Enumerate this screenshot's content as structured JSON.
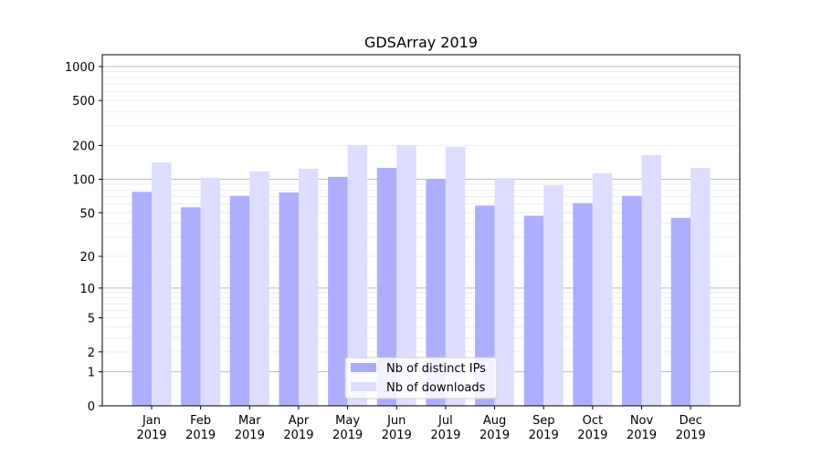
{
  "chart_data": {
    "type": "bar",
    "title": "GDSArray 2019",
    "xlabel": "",
    "ylabel": "",
    "yscale": "log(1+y)",
    "ylim": [
      0,
      1200
    ],
    "yticks": [
      0,
      1,
      2,
      5,
      10,
      20,
      50,
      100,
      200,
      500,
      1000
    ],
    "grid": true,
    "legend_position": "bottom-center",
    "categories": [
      "Jan\n2019",
      "Feb\n2019",
      "Mar\n2019",
      "Apr\n2019",
      "May\n2019",
      "Jun\n2019",
      "Jul\n2019",
      "Aug\n2019",
      "Sep\n2019",
      "Oct\n2019",
      "Nov\n2019",
      "Dec\n2019"
    ],
    "series": [
      {
        "name": "Nb of distinct IPs",
        "color": "#aaaaff",
        "values": [
          77,
          56,
          71,
          76,
          105,
          126,
          99,
          58,
          47,
          61,
          71,
          45
        ]
      },
      {
        "name": "Nb of downloads",
        "color": "#ddddff",
        "values": [
          141,
          103,
          117,
          124,
          201,
          201,
          194,
          102,
          88,
          113,
          164,
          126
        ]
      }
    ]
  }
}
